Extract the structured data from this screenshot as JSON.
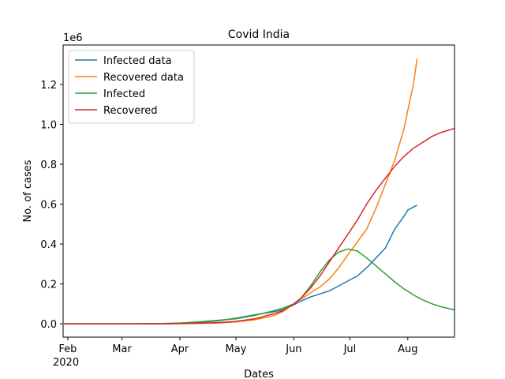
{
  "chart_data": {
    "type": "line",
    "title": "Covid India",
    "xlabel": "Dates",
    "ylabel": "No. of cases",
    "y_offset_label": "1e6",
    "x_year_label": "2020",
    "xlim": [
      -2.5,
      207
    ],
    "ylim": [
      -67000,
      1398000
    ],
    "xticks": [
      {
        "value": 0,
        "label": "Feb"
      },
      {
        "value": 29,
        "label": "Mar"
      },
      {
        "value": 60,
        "label": "Apr"
      },
      {
        "value": 90,
        "label": "May"
      },
      {
        "value": 121,
        "label": "Jun"
      },
      {
        "value": 151,
        "label": "Jul"
      },
      {
        "value": 182,
        "label": "Aug"
      }
    ],
    "yticks": [
      {
        "value": 0,
        "label": "0.0"
      },
      {
        "value": 200000,
        "label": "0.2"
      },
      {
        "value": 400000,
        "label": "0.4"
      },
      {
        "value": 600000,
        "label": "0.6"
      },
      {
        "value": 800000,
        "label": "0.8"
      },
      {
        "value": 1000000,
        "label": "1.0"
      },
      {
        "value": 1200000,
        "label": "1.2"
      }
    ],
    "legend": "upper left",
    "series": [
      {
        "name": "Infected data",
        "color": "#1f77b4",
        "x": [
          -2,
          10,
          30,
          50,
          60,
          70,
          80,
          90,
          100,
          110,
          115,
          121,
          125,
          130,
          135,
          140,
          145,
          151,
          155,
          161,
          166,
          170,
          175,
          180,
          182,
          185,
          187
        ],
        "values": [
          0,
          0,
          0,
          0,
          2000,
          7000,
          14000,
          28000,
          45000,
          60000,
          70000,
          95000,
          115000,
          135000,
          150000,
          165000,
          190000,
          220000,
          240000,
          290000,
          340000,
          380000,
          475000,
          540000,
          570000,
          585000,
          595000
        ]
      },
      {
        "name": "Recovered data",
        "color": "#ff7f0e",
        "x": [
          -2,
          10,
          30,
          50,
          60,
          70,
          80,
          90,
          100,
          110,
          115,
          121,
          125,
          130,
          135,
          140,
          145,
          151,
          155,
          160,
          165,
          170,
          175,
          180,
          182,
          185,
          187
        ],
        "values": [
          0,
          0,
          0,
          0,
          200,
          1500,
          4000,
          9000,
          20000,
          40000,
          60000,
          100000,
          125000,
          155000,
          185000,
          225000,
          280000,
          360000,
          410000,
          475000,
          580000,
          700000,
          820000,
          980000,
          1070000,
          1200000,
          1330000
        ]
      },
      {
        "name": "Infected",
        "color": "#2ca02c",
        "x": [
          -2,
          10,
          30,
          50,
          60,
          70,
          80,
          90,
          100,
          110,
          115,
          121,
          125,
          130,
          135,
          140,
          145,
          150,
          155,
          160,
          165,
          170,
          175,
          180,
          185,
          190,
          195,
          200,
          207
        ],
        "values": [
          0,
          0,
          0,
          1000,
          4000,
          10000,
          17000,
          25000,
          42000,
          65000,
          78000,
          100000,
          130000,
          190000,
          260000,
          320000,
          360000,
          375000,
          365000,
          330000,
          290000,
          250000,
          210000,
          175000,
          145000,
          120000,
          100000,
          85000,
          70000
        ]
      },
      {
        "name": "Recovered",
        "color": "#d62728",
        "x": [
          -2,
          10,
          30,
          50,
          60,
          70,
          80,
          90,
          100,
          110,
          115,
          121,
          125,
          130,
          135,
          140,
          145,
          150,
          155,
          160,
          165,
          170,
          175,
          180,
          185,
          190,
          195,
          200,
          207
        ],
        "values": [
          0,
          0,
          0,
          0,
          1000,
          3000,
          6000,
          12000,
          25000,
          50000,
          65000,
          100000,
          130000,
          180000,
          240000,
          310000,
          380000,
          450000,
          520000,
          600000,
          670000,
          730000,
          790000,
          840000,
          880000,
          910000,
          940000,
          960000,
          980000
        ]
      }
    ]
  }
}
